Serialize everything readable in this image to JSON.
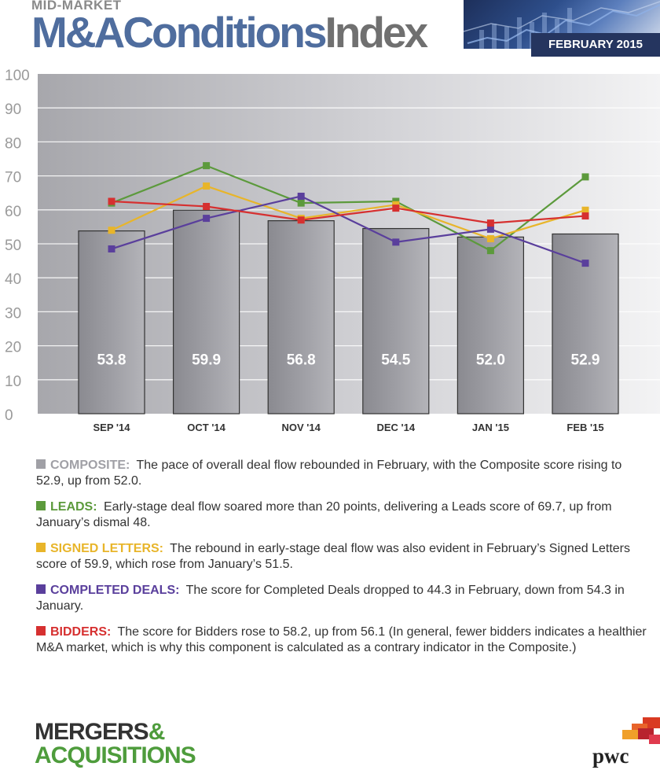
{
  "header": {
    "supertitle": "MID-MARKET",
    "title_part1": "M&A",
    "title_part2": "Conditions",
    "title_part3": "Index",
    "date": "FEBRUARY 2015"
  },
  "colors": {
    "composite": "#a0a0a6",
    "leads": "#5c9a3c",
    "signed_letters": "#e8b52a",
    "completed_deals": "#5a3f9c",
    "bidders": "#d63030"
  },
  "chart_data": {
    "type": "bar+line",
    "categories": [
      "SEP '14",
      "OCT '14",
      "NOV '14",
      "DEC '14",
      "JAN '15",
      "FEB '15"
    ],
    "ylim": [
      0,
      100
    ],
    "yticks": [
      "0",
      "10",
      "20",
      "30",
      "40",
      "50",
      "60",
      "70",
      "80",
      "90",
      "100"
    ],
    "bars": {
      "name": "COMPOSITE",
      "values": [
        53.8,
        59.9,
        56.8,
        54.5,
        52.0,
        52.9
      ],
      "labels": [
        "53.8",
        "59.9",
        "56.8",
        "54.5",
        "52.0",
        "52.9"
      ]
    },
    "series": [
      {
        "name": "LEADS",
        "values": [
          62.0,
          73.0,
          62.0,
          62.5,
          48.0,
          69.7
        ]
      },
      {
        "name": "SIGNED LETTERS",
        "values": [
          54.0,
          67.0,
          57.5,
          61.5,
          51.5,
          59.9
        ]
      },
      {
        "name": "COMPLETED DEALS",
        "values": [
          48.5,
          57.5,
          64.0,
          50.5,
          54.3,
          44.3
        ]
      },
      {
        "name": "BIDDERS",
        "values": [
          62.5,
          61.0,
          57.0,
          60.5,
          56.1,
          58.2
        ]
      }
    ],
    "grid": true
  },
  "notes": [
    {
      "label": "COMPOSITE:",
      "text": "The pace of overall deal flow rebounded in February, with the Composite score rising to 52.9, up from 52.0."
    },
    {
      "label": "LEADS:",
      "text": "Early-stage deal flow soared more than 20 points, delivering a Leads score of 69.7, up from January’s dismal 48."
    },
    {
      "label": "SIGNED LETTERS:",
      "text": "The rebound in early-stage deal flow was also evident in February’s Signed Letters score of 59.9, which rose from January’s 51.5."
    },
    {
      "label": "COMPLETED DEALS:",
      "text": "The score for Completed Deals dropped to 44.3 in February, down from 54.3 in January."
    },
    {
      "label": "BIDDERS:",
      "text": "The score for Bidders rose to 58.2, up from 56.1 (In general, fewer bidders indicates a healthier M&A market, which is why this component is calculated as a contrary indicator in the Composite.)"
    }
  ],
  "logos": {
    "ma_line1": "MERGERS",
    "ma_amp": "&",
    "ma_line2": "ACQUISITIONS",
    "pwc": "pwc"
  }
}
